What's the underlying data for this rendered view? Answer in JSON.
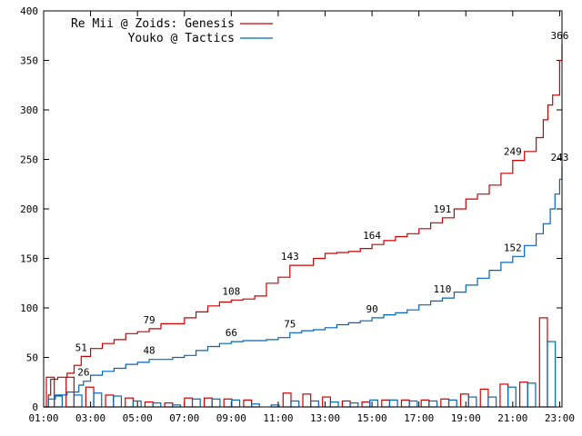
{
  "chart_data": {
    "type": "line",
    "ylim": [
      0,
      400
    ],
    "y_ticks": [
      0,
      50,
      100,
      150,
      200,
      250,
      300,
      350,
      400
    ],
    "x_ticks": [
      "01:00",
      "03:00",
      "05:00",
      "07:00",
      "09:00",
      "11:00",
      "13:00",
      "15:00",
      "17:00",
      "19:00",
      "21:00",
      "23:00"
    ],
    "x_range_hours": [
      1.0,
      23.1
    ],
    "legend_position": "top-left",
    "series": [
      {
        "name": "Re Mii @ Zoids: Genesis",
        "color": "#cc0000",
        "cumulative": [
          [
            1.0,
            0
          ],
          [
            1.2,
            12
          ],
          [
            1.3,
            28
          ],
          [
            1.6,
            30
          ],
          [
            2.0,
            34
          ],
          [
            2.3,
            42
          ],
          [
            2.6,
            51
          ],
          [
            3.0,
            59
          ],
          [
            3.5,
            64
          ],
          [
            4.0,
            68
          ],
          [
            4.5,
            74
          ],
          [
            5.0,
            76
          ],
          [
            5.5,
            79
          ],
          [
            6.0,
            84
          ],
          [
            7.0,
            90
          ],
          [
            7.5,
            96
          ],
          [
            8.0,
            102
          ],
          [
            8.5,
            106
          ],
          [
            9.0,
            108
          ],
          [
            9.5,
            109
          ],
          [
            10.0,
            112
          ],
          [
            10.5,
            125
          ],
          [
            11.0,
            131
          ],
          [
            11.5,
            143
          ],
          [
            12.0,
            143
          ],
          [
            12.5,
            150
          ],
          [
            13.0,
            155
          ],
          [
            13.5,
            156
          ],
          [
            14.0,
            157
          ],
          [
            14.5,
            160
          ],
          [
            15.0,
            164
          ],
          [
            15.5,
            168
          ],
          [
            16.0,
            172
          ],
          [
            16.5,
            175
          ],
          [
            17.0,
            180
          ],
          [
            17.5,
            186
          ],
          [
            18.0,
            191
          ],
          [
            18.5,
            200
          ],
          [
            19.0,
            210
          ],
          [
            19.5,
            215
          ],
          [
            20.0,
            224
          ],
          [
            20.5,
            236
          ],
          [
            21.0,
            249
          ],
          [
            21.5,
            258
          ],
          [
            22.0,
            272
          ],
          [
            22.3,
            290
          ],
          [
            22.5,
            305
          ],
          [
            22.7,
            315
          ],
          [
            23.0,
            350
          ],
          [
            23.1,
            366
          ]
        ],
        "labels": [
          {
            "x": 2.6,
            "y": 51,
            "text": "51"
          },
          {
            "x": 5.5,
            "y": 79,
            "text": "79"
          },
          {
            "x": 9.0,
            "y": 108,
            "text": "108"
          },
          {
            "x": 11.5,
            "y": 143,
            "text": "143"
          },
          {
            "x": 15.0,
            "y": 164,
            "text": "164"
          },
          {
            "x": 18.0,
            "y": 191,
            "text": "191"
          },
          {
            "x": 21.0,
            "y": 249,
            "text": "249"
          },
          {
            "x": 23.0,
            "y": 366,
            "text": "366"
          }
        ],
        "bars": [
          30,
          30,
          20,
          12,
          9,
          5,
          4,
          9,
          9,
          8,
          7,
          0,
          14,
          13,
          10,
          6,
          5,
          7,
          7,
          7,
          8,
          13,
          18,
          23,
          25,
          90
        ]
      },
      {
        "name": "Youko @ Tactics",
        "color": "#0066bb",
        "cumulative": [
          [
            1.0,
            0
          ],
          [
            1.2,
            8
          ],
          [
            1.5,
            12
          ],
          [
            2.0,
            15
          ],
          [
            2.5,
            22
          ],
          [
            2.7,
            26
          ],
          [
            3.0,
            32
          ],
          [
            3.5,
            36
          ],
          [
            4.0,
            39
          ],
          [
            4.5,
            43
          ],
          [
            5.0,
            45
          ],
          [
            5.5,
            48
          ],
          [
            6.0,
            48
          ],
          [
            6.5,
            50
          ],
          [
            7.0,
            52
          ],
          [
            7.5,
            57
          ],
          [
            8.0,
            61
          ],
          [
            8.5,
            64
          ],
          [
            9.0,
            66
          ],
          [
            9.5,
            67
          ],
          [
            10.0,
            67
          ],
          [
            10.5,
            68
          ],
          [
            11.0,
            70
          ],
          [
            11.5,
            75
          ],
          [
            12.0,
            77
          ],
          [
            12.5,
            78
          ],
          [
            13.0,
            80
          ],
          [
            13.5,
            83
          ],
          [
            14.0,
            85
          ],
          [
            14.5,
            87
          ],
          [
            15.0,
            90
          ],
          [
            15.5,
            93
          ],
          [
            16.0,
            95
          ],
          [
            16.5,
            98
          ],
          [
            17.0,
            103
          ],
          [
            17.5,
            107
          ],
          [
            18.0,
            110
          ],
          [
            18.5,
            116
          ],
          [
            19.0,
            123
          ],
          [
            19.5,
            130
          ],
          [
            20.0,
            138
          ],
          [
            20.5,
            146
          ],
          [
            21.0,
            152
          ],
          [
            21.5,
            163
          ],
          [
            22.0,
            175
          ],
          [
            22.3,
            185
          ],
          [
            22.6,
            200
          ],
          [
            22.8,
            215
          ],
          [
            23.0,
            230
          ],
          [
            23.1,
            243
          ]
        ],
        "labels": [
          {
            "x": 2.7,
            "y": 26,
            "text": "26"
          },
          {
            "x": 5.5,
            "y": 48,
            "text": "48"
          },
          {
            "x": 9.0,
            "y": 66,
            "text": "66"
          },
          {
            "x": 11.5,
            "y": 75,
            "text": "75"
          },
          {
            "x": 15.0,
            "y": 90,
            "text": "90"
          },
          {
            "x": 18.0,
            "y": 110,
            "text": "110"
          },
          {
            "x": 21.0,
            "y": 152,
            "text": "152"
          },
          {
            "x": 23.0,
            "y": 243,
            "text": "243"
          }
        ],
        "bars": [
          11,
          12,
          14,
          11,
          6,
          4,
          2,
          8,
          8,
          7,
          3,
          2,
          6,
          6,
          5,
          4,
          7,
          7,
          6,
          6,
          7,
          10,
          10,
          20,
          24,
          66
        ]
      }
    ]
  }
}
